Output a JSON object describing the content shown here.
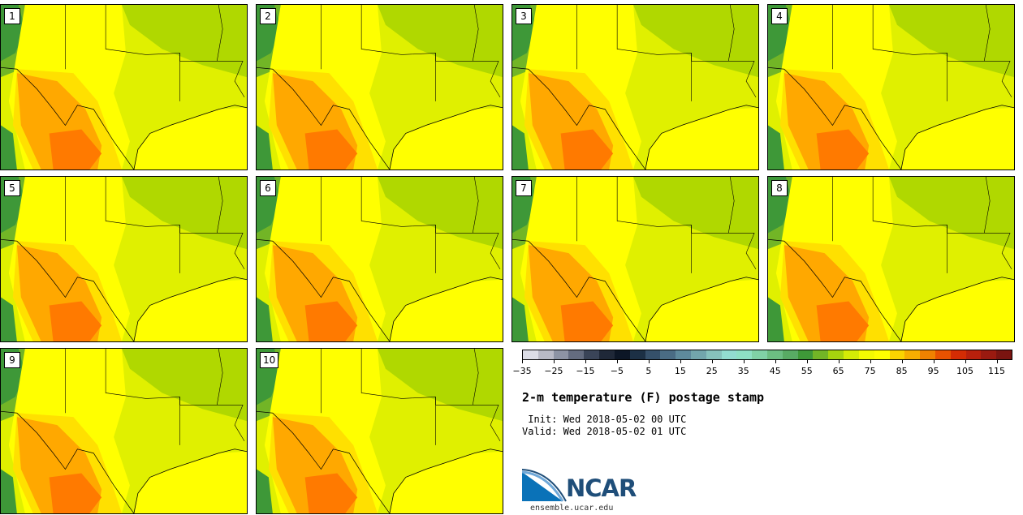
{
  "figure": {
    "title": "2-m temperature (F) postage stamp",
    "init_line": " Init: Wed 2018-05-02 00 UTC",
    "valid_line": "Valid: Wed 2018-05-02 01 UTC",
    "org_name": "NCAR",
    "org_url": "ensemble.ucar.edu"
  },
  "members": [
    {
      "label": "1"
    },
    {
      "label": "2"
    },
    {
      "label": "3"
    },
    {
      "label": "4"
    },
    {
      "label": "5"
    },
    {
      "label": "6"
    },
    {
      "label": "7"
    },
    {
      "label": "8"
    },
    {
      "label": "9"
    },
    {
      "label": "10"
    }
  ],
  "colorbar": {
    "tick_labels": [
      "−35",
      "−25",
      "−15",
      "−5",
      "5",
      "15",
      "25",
      "35",
      "45",
      "55",
      "65",
      "75",
      "85",
      "95",
      "105",
      "115"
    ],
    "min": -35,
    "max": 120,
    "bin_width": 5,
    "colors": [
      "#dcdde6",
      "#b9bac6",
      "#8d93a4",
      "#646c80",
      "#3a4458",
      "#1f2838",
      "#0c1626",
      "#1c3045",
      "#35506a",
      "#4a6c84",
      "#5e8a9c",
      "#72a6ac",
      "#86c2bc",
      "#92dcd0",
      "#8ee0c4",
      "#80d2a6",
      "#6cbe82",
      "#58ab64",
      "#3e9838",
      "#72b526",
      "#a6d40e",
      "#d4ec06",
      "#f4fa02",
      "#ffff00",
      "#fad400",
      "#f6ae00",
      "#f08200",
      "#e85200",
      "#d42c04",
      "#b8200c",
      "#9a1a10",
      "#7a1410"
    ]
  },
  "map_colors": {
    "water": "#ffff00",
    "base": "#e0f000",
    "north": "#b0d800",
    "mid": "#ffff00",
    "warm": "#ffe000",
    "hot": "#ffa800",
    "hotter": "#ff7a00",
    "mountain": "#3e9838",
    "highland": "#72b526"
  }
}
